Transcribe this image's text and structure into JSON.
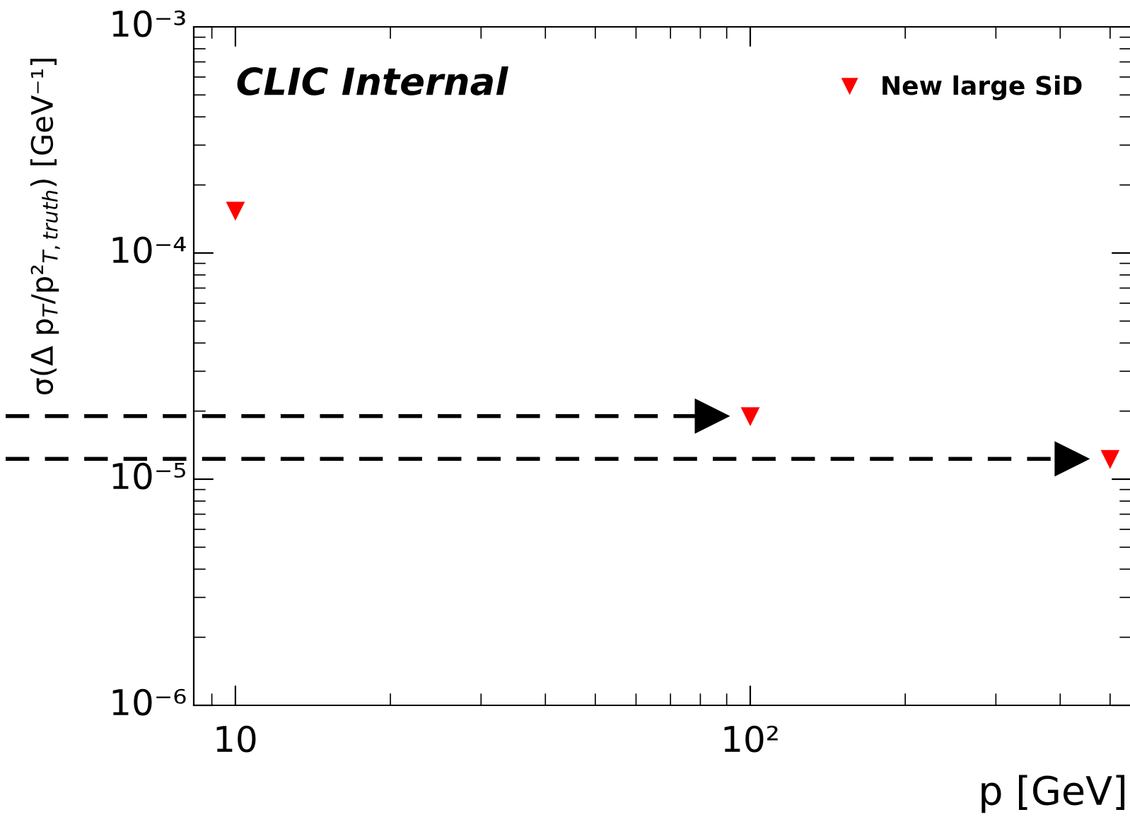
{
  "chart_data": {
    "type": "scatter",
    "xlabel": "p [GeV]",
    "ylabel": "σ(Δ p$_{T}$/p²$_{T,truth}$) [GeV⁻¹]",
    "annotations": [
      "CLIC Internal"
    ],
    "x": [
      10,
      100,
      500
    ],
    "series": [
      {
        "name": "New large SiD",
        "color": "#ff0000",
        "values": [
          0.000154,
          1.9e-05,
          1.23e-05
        ]
      }
    ],
    "log": "xy",
    "xlim": [
      8.3,
      550
    ],
    "ylim": [
      1e-06,
      0.001
    ],
    "xticks": [
      {
        "value": 10,
        "label": "10"
      },
      {
        "value": 100,
        "label": "10²"
      }
    ],
    "yticks": [
      {
        "value": 1e-06,
        "label": "10⁻⁶"
      },
      {
        "value": 1e-05,
        "label": "10⁻⁵"
      },
      {
        "value": 0.0001,
        "label": "10⁻⁴"
      },
      {
        "value": 0.001,
        "label": "10⁻³"
      }
    ],
    "ref_lines": [
      {
        "axis": "y",
        "value": 1.9e-05,
        "color": "#000000",
        "line_style": "dashed"
      },
      {
        "axis": "y",
        "value": 1.23e-05,
        "color": "#000000",
        "line_style": "dashed"
      }
    ],
    "marker": "triangle",
    "legend": "top right",
    "grid": false
  }
}
